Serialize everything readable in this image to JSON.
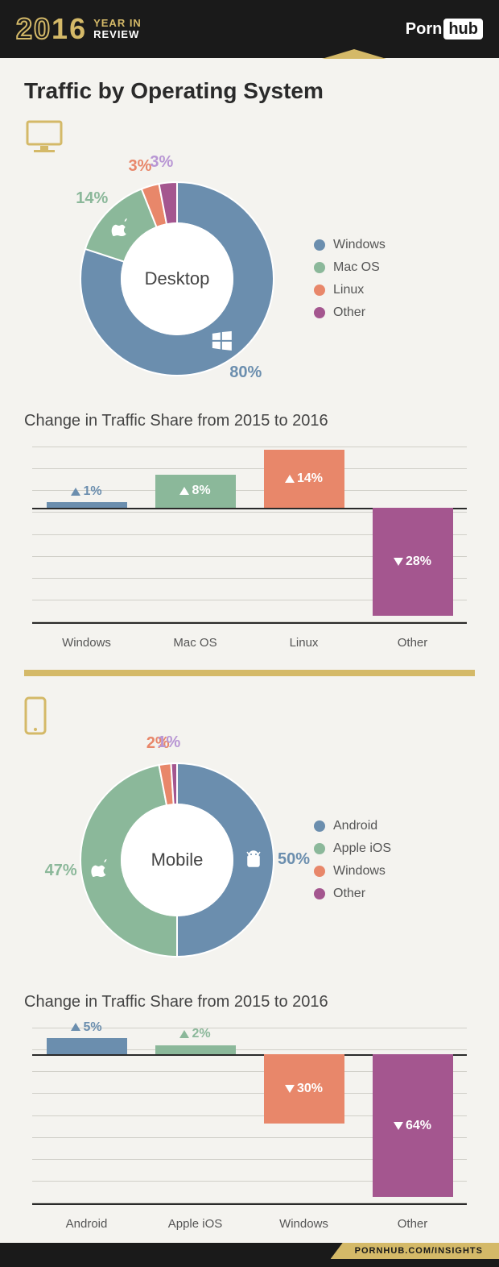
{
  "header": {
    "year_prefix": "20",
    "year_suffix": "16",
    "tagline_top": "YEAR IN",
    "tagline_bottom": "REVIEW",
    "logo_left": "Porn",
    "logo_right": "hub"
  },
  "title": "Traffic by Operating System",
  "colors": {
    "blue": "#6b8eae",
    "green": "#8bb89a",
    "orange": "#e8876a",
    "purple": "#a4568f",
    "lilac": "#b896d4",
    "gold": "#d4b968",
    "text": "#444"
  },
  "desktop": {
    "center_label": "Desktop",
    "type": "donut",
    "slices": [
      {
        "label": "Windows",
        "value": 80,
        "pct": "80%",
        "color": "#6b8eae",
        "label_color": "#6b8eae"
      },
      {
        "label": "Mac OS",
        "value": 14,
        "pct": "14%",
        "color": "#8bb89a",
        "label_color": "#8bb89a"
      },
      {
        "label": "Linux",
        "value": 3,
        "pct": "3%",
        "color": "#e8876a",
        "label_color": "#e8876a"
      },
      {
        "label": "Other",
        "value": 3,
        "pct": "3%",
        "color": "#a4568f",
        "label_color": "#b896d4"
      }
    ],
    "change_title": "Change in Traffic Share from 2015 to 2016",
    "change": {
      "type": "bar",
      "baseline_pct": 35,
      "gridlines": 9,
      "bars": [
        {
          "label": "Windows",
          "value": 1,
          "text": "1%",
          "dir": "up",
          "color": "#6b8eae",
          "height_pct": 3,
          "text_above": true
        },
        {
          "label": "Mac OS",
          "value": 8,
          "text": "8%",
          "dir": "up",
          "color": "#8bb89a",
          "height_pct": 19,
          "text_above": false
        },
        {
          "label": "Linux",
          "value": 14,
          "text": "14%",
          "dir": "up",
          "color": "#e8876a",
          "height_pct": 33,
          "text_above": false
        },
        {
          "label": "Other",
          "value": -28,
          "text": "28%",
          "dir": "down",
          "color": "#a4568f",
          "height_pct": 62,
          "text_above": false
        }
      ]
    }
  },
  "mobile": {
    "center_label": "Mobile",
    "type": "donut",
    "slices": [
      {
        "label": "Android",
        "value": 50,
        "pct": "50%",
        "color": "#6b8eae",
        "label_color": "#6b8eae"
      },
      {
        "label": "Apple iOS",
        "value": 47,
        "pct": "47%",
        "color": "#8bb89a",
        "label_color": "#8bb89a"
      },
      {
        "label": "Windows",
        "value": 2,
        "pct": "2%",
        "color": "#e8876a",
        "label_color": "#e8876a"
      },
      {
        "label": "Other",
        "value": 1,
        "pct": "1%",
        "color": "#a4568f",
        "label_color": "#b896d4"
      }
    ],
    "change_title": "Change in Traffic Share from 2015 to 2016",
    "change": {
      "type": "bar",
      "baseline_pct": 15,
      "gridlines": 9,
      "bars": [
        {
          "label": "Android",
          "value": 5,
          "text": "5%",
          "dir": "up",
          "color": "#6b8eae",
          "height_pct": 9,
          "text_above": true
        },
        {
          "label": "Apple iOS",
          "value": 2,
          "text": "2%",
          "dir": "up",
          "color": "#8bb89a",
          "height_pct": 5,
          "text_above": true
        },
        {
          "label": "Windows",
          "value": -30,
          "text": "30%",
          "dir": "down",
          "color": "#e8876a",
          "height_pct": 40,
          "text_above": false
        },
        {
          "label": "Other",
          "value": -64,
          "text": "64%",
          "dir": "down",
          "color": "#a4568f",
          "height_pct": 82,
          "text_above": false
        }
      ]
    }
  },
  "footer": {
    "url": "PORNHUB.COM/INSIGHTS"
  }
}
